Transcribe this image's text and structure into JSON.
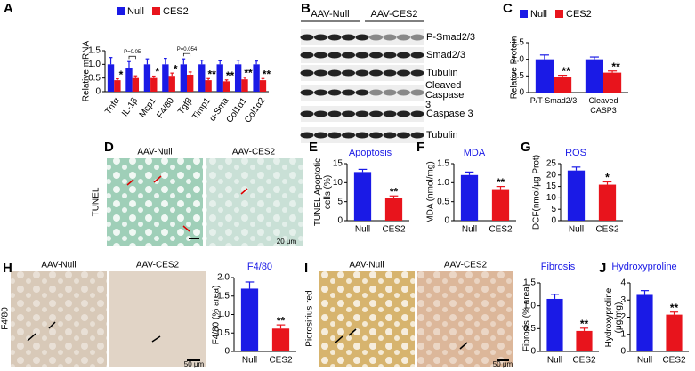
{
  "panel_labels": [
    "A",
    "B",
    "C",
    "D",
    "E",
    "F",
    "G",
    "H",
    "I",
    "J"
  ],
  "blot": {
    "groups": [
      "AAV-Null",
      "AAV-CES2"
    ],
    "bands": [
      "P-Smad2/3",
      "Smad2/3",
      "Tubulin",
      "Cleaved Caspase 3",
      "Caspase 3",
      "Tubulin"
    ]
  },
  "micrographs": [
    {
      "stain": "TUNEL",
      "groups": [
        "AAV-Null",
        "AAV-CES2"
      ],
      "scale_bar": "20 μm"
    },
    {
      "stain": "F4/80",
      "groups": [
        "AAV-Null",
        "AAV-CES2"
      ],
      "scale_bar": "50 μm"
    },
    {
      "stain": "Picrosirius red",
      "groups": [
        "AAV-Null",
        "AAV-CES2"
      ],
      "scale_bar": "50 μm"
    }
  ],
  "chart_data": [
    {
      "type": "bar",
      "ylabel": "Relative mRNA",
      "categories": [
        "Tnfα",
        "IL-1β",
        "Mcp1",
        "F4/80",
        "Tgfβ",
        "Timp1",
        "α-Sma",
        "Col1α1",
        "Col1α2"
      ],
      "series": [
        {
          "name": "Null",
          "color": "#1a1ae6",
          "values": [
            1.0,
            0.88,
            1.0,
            1.0,
            1.0,
            1.0,
            1.0,
            1.0,
            1.0
          ],
          "errors": [
            0.25,
            0.22,
            0.2,
            0.22,
            0.2,
            0.15,
            0.13,
            0.15,
            0.12
          ]
        },
        {
          "name": "CES2",
          "color": "#e8141c",
          "values": [
            0.42,
            0.5,
            0.5,
            0.58,
            0.62,
            0.42,
            0.38,
            0.45,
            0.42
          ],
          "errors": [
            0.05,
            0.08,
            0.07,
            0.1,
            0.1,
            0.06,
            0.05,
            0.08,
            0.06
          ]
        }
      ],
      "significance": [
        "*",
        null,
        "*",
        "*",
        null,
        "**",
        "**",
        "**",
        "**"
      ],
      "annotations": [
        null,
        "P=0.05",
        null,
        null,
        "P=0.054",
        null,
        null,
        null,
        null
      ],
      "ylim": [
        0,
        1.5
      ],
      "yticks": [
        0,
        0.5,
        {
          "value": 1,
          "label": "1.0"
        },
        1.5
      ]
    },
    {
      "type": "bar",
      "ylabel": "Relative Protein",
      "categories": [
        "P/T-Smad2/3",
        "Cleaved CASP3"
      ],
      "series": [
        {
          "name": "Null",
          "color": "#1a1ae6",
          "values": [
            1.0,
            1.0
          ],
          "errors": [
            0.13,
            0.07
          ]
        },
        {
          "name": "CES2",
          "color": "#e8141c",
          "values": [
            0.47,
            0.6
          ],
          "errors": [
            0.05,
            0.05
          ]
        }
      ],
      "significance": [
        "**",
        "**"
      ],
      "ylim": [
        0,
        1.5
      ],
      "yticks": [
        0,
        0.5,
        {
          "value": 1,
          "label": "1.0"
        },
        1.5
      ]
    },
    {
      "type": "bar",
      "title": "Apoptosis",
      "ylabel": "TUNEL Apoptotic cells (%)",
      "categories": [
        "Null",
        "CES2"
      ],
      "colors": [
        "#1a1ae6",
        "#e8141c"
      ],
      "values": [
        12.8,
        6.0
      ],
      "errors": [
        0.7,
        0.5
      ],
      "significance": [
        null,
        "**"
      ],
      "ylim": [
        0,
        15
      ],
      "yticks": [
        0,
        5,
        10,
        15
      ]
    },
    {
      "type": "bar",
      "title": "MDA",
      "ylabel": "MDA (nmol/mg)",
      "categories": [
        "Null",
        "CES2"
      ],
      "colors": [
        "#1a1ae6",
        "#e8141c"
      ],
      "values": [
        1.2,
        0.83
      ],
      "errors": [
        0.08,
        0.07
      ],
      "significance": [
        null,
        "**"
      ],
      "ylim": [
        0,
        1.5
      ],
      "yticks": [
        0,
        0.5,
        {
          "value": 1,
          "label": "1.0"
        },
        1.5
      ]
    },
    {
      "type": "bar",
      "title": "ROS",
      "ylabel": "DCF(nmol/μg Prot)",
      "categories": [
        "Null",
        "CES2"
      ],
      "colors": [
        "#1a1ae6",
        "#e8141c"
      ],
      "values": [
        22,
        15.8
      ],
      "errors": [
        1.5,
        1.2
      ],
      "significance": [
        null,
        "*"
      ],
      "ylim": [
        0,
        25
      ],
      "yticks": [
        0,
        5,
        10,
        15,
        20,
        25
      ]
    },
    {
      "type": "bar",
      "title": "F4/80",
      "ylabel": "F4/80 (% area)",
      "categories": [
        "Null",
        "CES2"
      ],
      "colors": [
        "#1a1ae6",
        "#e8141c"
      ],
      "values": [
        1.7,
        0.62
      ],
      "errors": [
        0.18,
        0.1
      ],
      "significance": [
        null,
        "**"
      ],
      "ylim": [
        0,
        2
      ],
      "yticks": [
        0,
        0.5,
        {
          "value": 1,
          "label": "1.0"
        },
        1.5,
        {
          "value": 2,
          "label": "2.0"
        }
      ]
    },
    {
      "type": "bar",
      "title": "Fibrosis",
      "ylabel": "Fibrosis (% area)",
      "categories": [
        "Null",
        "CES2"
      ],
      "colors": [
        "#1a1ae6",
        "#e8141c"
      ],
      "values": [
        1.15,
        0.45
      ],
      "errors": [
        0.1,
        0.06
      ],
      "significance": [
        null,
        "**"
      ],
      "ylim": [
        0,
        1.5
      ],
      "yticks": [
        0,
        0.5,
        {
          "value": 1,
          "label": "1.0"
        },
        1.5
      ]
    },
    {
      "type": "bar",
      "title": "Hydroxyproline",
      "ylabel": "Hydroxyproline (μg/mg)",
      "categories": [
        "Null",
        "CES2"
      ],
      "colors": [
        "#1a1ae6",
        "#e8141c"
      ],
      "values": [
        3.3,
        2.15
      ],
      "errors": [
        0.25,
        0.15
      ],
      "significance": [
        null,
        "**"
      ],
      "ylim": [
        0,
        4
      ],
      "yticks": [
        0,
        1,
        2,
        3,
        4
      ]
    }
  ]
}
